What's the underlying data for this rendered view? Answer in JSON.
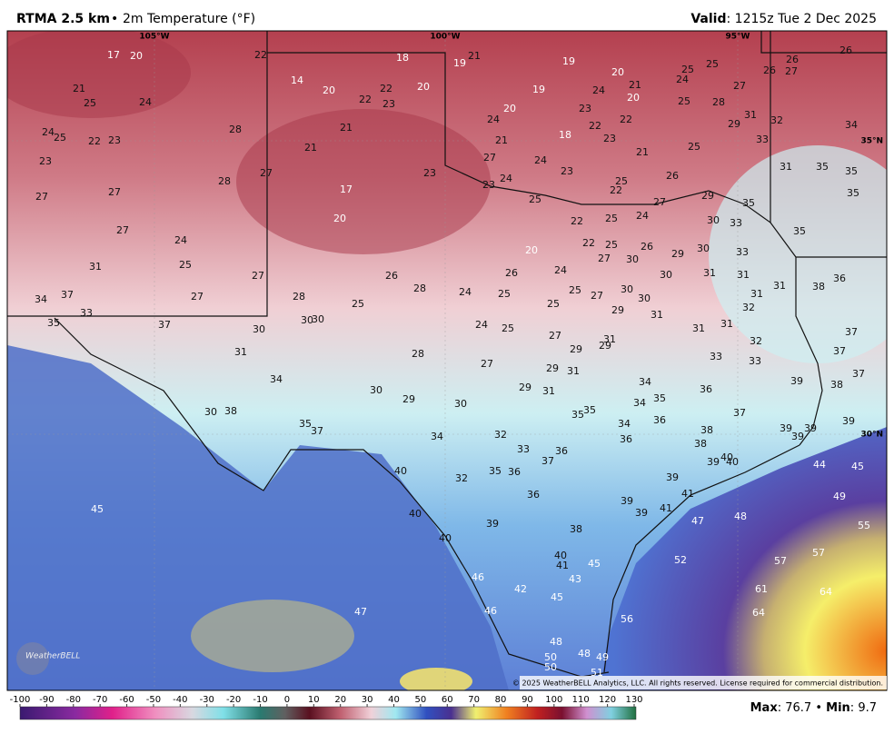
{
  "header": {
    "title": "RTMA 2.5 km",
    "separator": "•",
    "subtitle": "2m Temperature (°F)",
    "valid_label": "Valid",
    "valid_time": "1215z Tue 2 Dec 2025"
  },
  "map": {
    "lon_labels": [
      "105°W",
      "100°W",
      "95°W"
    ],
    "lat_labels": [
      "35°N",
      "30°N"
    ],
    "station_values": [
      17,
      20,
      22,
      18,
      19,
      21,
      19,
      20,
      25,
      25,
      26,
      27,
      26,
      26,
      21,
      25,
      24,
      14,
      20,
      22,
      22,
      23,
      20,
      19,
      24,
      21,
      20,
      24,
      25,
      28,
      27,
      23,
      22,
      24,
      20,
      31,
      32,
      29,
      34,
      24,
      25,
      22,
      23,
      28,
      21,
      21,
      18,
      22,
      23,
      33,
      21,
      27,
      25,
      21,
      23,
      24,
      23,
      31,
      35,
      35,
      23,
      27,
      28,
      24,
      23,
      25,
      26,
      22,
      27,
      27,
      17,
      25,
      27,
      29,
      35,
      35,
      24,
      25,
      22,
      30,
      33,
      35,
      20,
      27,
      24,
      22,
      25,
      26,
      29,
      30,
      33,
      20,
      27,
      30,
      31,
      25,
      27,
      26,
      26,
      24,
      30,
      31,
      31,
      36,
      34,
      37,
      27,
      28,
      28,
      24,
      25,
      25,
      27,
      30,
      30,
      31,
      31,
      38,
      35,
      33,
      37,
      30,
      30,
      30,
      25,
      24,
      25,
      25,
      29,
      31,
      32,
      31,
      31,
      27,
      37,
      31,
      29,
      29,
      31,
      28,
      32,
      37,
      33,
      33,
      27,
      29,
      31,
      34,
      30,
      29,
      30,
      29,
      31,
      34,
      36,
      39,
      38,
      37,
      30,
      38,
      34,
      35,
      35,
      35,
      37,
      39,
      35,
      37,
      34,
      36,
      34,
      32,
      38,
      36,
      39,
      39,
      39,
      38,
      33,
      36,
      37,
      40,
      39,
      40,
      44,
      45,
      40,
      35,
      36,
      32,
      39,
      36,
      41,
      49,
      45,
      39,
      39,
      41,
      47,
      48,
      40,
      39,
      38,
      55,
      40,
      40,
      41,
      45,
      52,
      57,
      57,
      46,
      43,
      42,
      45,
      61,
      64,
      47,
      46,
      64,
      56,
      48,
      48,
      49,
      50,
      50,
      51
    ],
    "copyright": "© 2025 WeatherBELL Analytics, LLC. All rights reserved. License required for commercial distribution.",
    "logo": "WeatherBELL"
  },
  "colorbar": {
    "ticks": [
      -100,
      -90,
      -80,
      -70,
      -60,
      -50,
      -40,
      -30,
      -20,
      -10,
      0,
      10,
      20,
      30,
      40,
      50,
      60,
      70,
      80,
      90,
      100,
      110,
      120,
      130
    ]
  },
  "footer": {
    "max_label": "Max",
    "max": 76.7,
    "separator": "•",
    "min_label": "Min",
    "min": 9.7
  }
}
